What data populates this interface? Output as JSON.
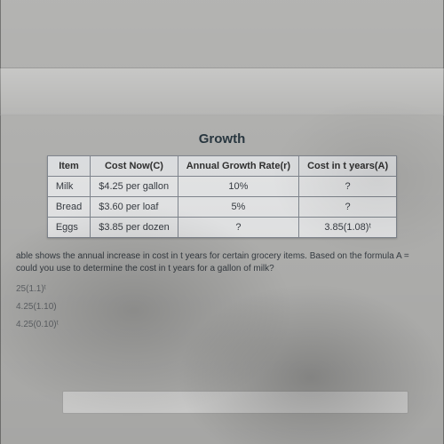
{
  "title": "Growth",
  "table": {
    "columns": [
      "Item",
      "Cost Now(C)",
      "Annual Growth Rate(r)",
      "Cost in t years(A)"
    ],
    "rows": [
      [
        "Milk",
        "$4.25 per gallon",
        "10%",
        "?"
      ],
      [
        "Bread",
        "$3.60 per loaf",
        "5%",
        "?"
      ],
      [
        "Eggs",
        "$3.85 per dozen",
        "?",
        "3.85(1.08)ᵗ"
      ]
    ],
    "header_bg": "#eceef0",
    "cell_bg": "#f4f5f6",
    "border_color": "#8a9099",
    "text_color": "#3a3f46"
  },
  "question": {
    "line1": "able shows the annual increase in cost in t years for certain grocery items. Based on the formula A =",
    "line2": "could you use to determine the cost in t years for a gallon of milk?"
  },
  "options": [
    "25(1.1)ᵗ",
    "4.25(1.10)",
    "4.25(0.10)ᵗ"
  ],
  "background_color": "#bdbdbb"
}
